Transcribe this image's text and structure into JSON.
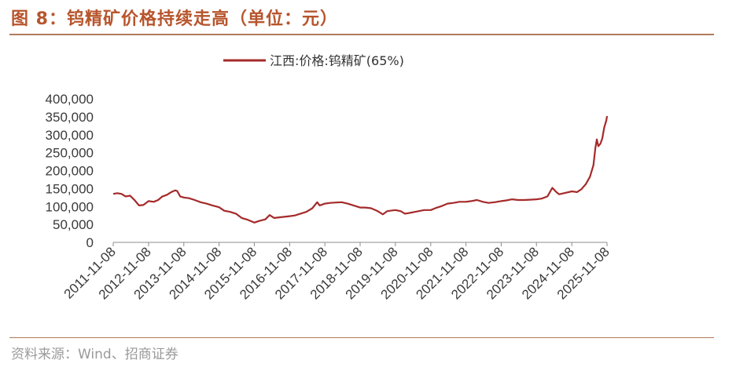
{
  "header": {
    "title": "图 8：钨精矿价格持续走高（单位：元）"
  },
  "footer": {
    "source": "资料来源：Wind、招商证券"
  },
  "chart_data": {
    "type": "line",
    "title": "",
    "xlabel": "",
    "ylabel": "",
    "legend_position": "top-center",
    "grid": false,
    "ylim": [
      0,
      400000
    ],
    "yticks": [
      0,
      50000,
      100000,
      150000,
      200000,
      250000,
      300000,
      350000,
      400000
    ],
    "ytick_labels": [
      "0",
      "50,000",
      "100,000",
      "150,000",
      "200,000",
      "250,000",
      "300,000",
      "350,000",
      "400,000"
    ],
    "xticks": [
      "2011-11-08",
      "2012-11-08",
      "2013-11-08",
      "2014-11-08",
      "2015-11-08",
      "2016-11-08",
      "2017-11-08",
      "2018-11-08",
      "2019-11-08",
      "2020-11-08",
      "2021-11-08",
      "2022-11-08",
      "2023-11-08",
      "2024-11-08",
      "2025-11-08"
    ],
    "xlim": [
      "2011-11-08",
      "2025-11-08"
    ],
    "series": [
      {
        "name": "江西:价格:钨精矿(65%)",
        "color": "#a52a2a",
        "points": [
          [
            "2011-11-08",
            135000
          ],
          [
            "2011-12-20",
            137000
          ],
          [
            "2012-02-01",
            135000
          ],
          [
            "2012-03-15",
            128000
          ],
          [
            "2012-05-01",
            130000
          ],
          [
            "2012-06-15",
            118000
          ],
          [
            "2012-08-01",
            103000
          ],
          [
            "2012-09-15",
            104000
          ],
          [
            "2012-11-08",
            115000
          ],
          [
            "2013-01-01",
            113000
          ],
          [
            "2013-02-15",
            118000
          ],
          [
            "2013-04-01",
            128000
          ],
          [
            "2013-05-15",
            132000
          ],
          [
            "2013-07-01",
            140000
          ],
          [
            "2013-08-10",
            145000
          ],
          [
            "2013-09-01",
            143000
          ],
          [
            "2013-10-01",
            128000
          ],
          [
            "2013-11-08",
            125000
          ],
          [
            "2014-01-01",
            123000
          ],
          [
            "2014-03-01",
            118000
          ],
          [
            "2014-05-01",
            112000
          ],
          [
            "2014-07-01",
            108000
          ],
          [
            "2014-09-01",
            103000
          ],
          [
            "2014-11-08",
            98000
          ],
          [
            "2015-01-01",
            88000
          ],
          [
            "2015-03-01",
            85000
          ],
          [
            "2015-05-01",
            80000
          ],
          [
            "2015-07-01",
            68000
          ],
          [
            "2015-09-01",
            63000
          ],
          [
            "2015-11-08",
            55000
          ],
          [
            "2016-01-01",
            60000
          ],
          [
            "2016-03-01",
            64000
          ],
          [
            "2016-04-15",
            76000
          ],
          [
            "2016-06-01",
            68000
          ],
          [
            "2016-08-01",
            70000
          ],
          [
            "2016-11-08",
            73000
          ],
          [
            "2017-01-01",
            75000
          ],
          [
            "2017-03-01",
            80000
          ],
          [
            "2017-05-01",
            85000
          ],
          [
            "2017-07-01",
            95000
          ],
          [
            "2017-08-20",
            112000
          ],
          [
            "2017-09-15",
            103000
          ],
          [
            "2017-11-08",
            108000
          ],
          [
            "2018-01-01",
            110000
          ],
          [
            "2018-03-01",
            111000
          ],
          [
            "2018-05-01",
            112000
          ],
          [
            "2018-07-01",
            108000
          ],
          [
            "2018-09-01",
            103000
          ],
          [
            "2018-11-08",
            97000
          ],
          [
            "2019-01-01",
            97000
          ],
          [
            "2019-03-01",
            95000
          ],
          [
            "2019-05-01",
            88000
          ],
          [
            "2019-07-01",
            78000
          ],
          [
            "2019-08-15",
            87000
          ],
          [
            "2019-09-15",
            88000
          ],
          [
            "2019-11-08",
            90000
          ],
          [
            "2020-01-01",
            87000
          ],
          [
            "2020-02-15",
            80000
          ],
          [
            "2020-04-01",
            82000
          ],
          [
            "2020-06-01",
            85000
          ],
          [
            "2020-09-01",
            90000
          ],
          [
            "2020-11-08",
            90000
          ],
          [
            "2021-01-01",
            96000
          ],
          [
            "2021-03-01",
            101000
          ],
          [
            "2021-05-01",
            108000
          ],
          [
            "2021-07-01",
            110000
          ],
          [
            "2021-09-01",
            113000
          ],
          [
            "2021-11-08",
            113000
          ],
          [
            "2022-01-01",
            115000
          ],
          [
            "2022-03-01",
            118000
          ],
          [
            "2022-05-01",
            113000
          ],
          [
            "2022-07-01",
            110000
          ],
          [
            "2022-09-01",
            112000
          ],
          [
            "2022-11-08",
            115000
          ],
          [
            "2023-01-01",
            117000
          ],
          [
            "2023-03-01",
            120000
          ],
          [
            "2023-05-01",
            118000
          ],
          [
            "2023-07-01",
            118000
          ],
          [
            "2023-09-01",
            119000
          ],
          [
            "2023-11-08",
            120000
          ],
          [
            "2024-01-01",
            122000
          ],
          [
            "2024-03-01",
            128000
          ],
          [
            "2024-04-20",
            152000
          ],
          [
            "2024-06-01",
            140000
          ],
          [
            "2024-07-01",
            134000
          ],
          [
            "2024-09-01",
            138000
          ],
          [
            "2024-11-08",
            142000
          ],
          [
            "2025-01-01",
            140000
          ],
          [
            "2025-02-15",
            148000
          ],
          [
            "2025-04-01",
            162000
          ],
          [
            "2025-05-15",
            183000
          ],
          [
            "2025-06-20",
            215000
          ],
          [
            "2025-07-10",
            262000
          ],
          [
            "2025-07-25",
            287000
          ],
          [
            "2025-08-10",
            268000
          ],
          [
            "2025-09-01",
            275000
          ],
          [
            "2025-09-20",
            290000
          ],
          [
            "2025-10-10",
            320000
          ],
          [
            "2025-11-01",
            340000
          ],
          [
            "2025-11-08",
            352000
          ]
        ]
      }
    ]
  }
}
